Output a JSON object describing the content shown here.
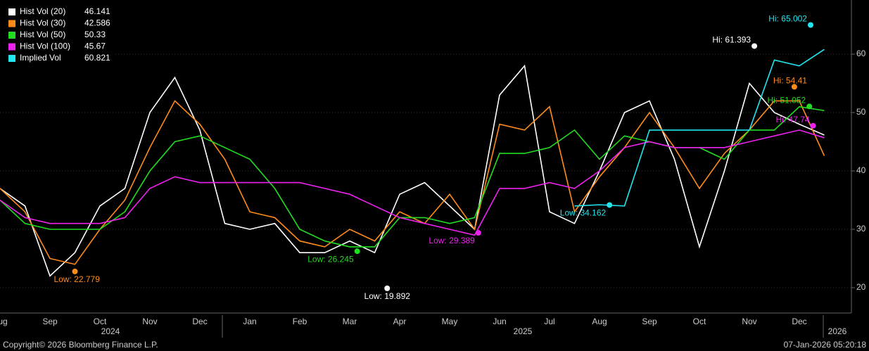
{
  "chart_data": {
    "type": "line",
    "categories": [
      "Aug",
      null,
      "Sep",
      null,
      "Oct",
      null,
      "Nov",
      null,
      "Dec",
      null,
      "Jan",
      null,
      "Feb",
      null,
      "Mar",
      null,
      "Apr",
      null,
      "May",
      null,
      "Jun",
      null,
      "Jul",
      null,
      "Aug",
      null,
      "Sep",
      null,
      "Oct",
      null,
      "Nov",
      null,
      "Dec",
      null
    ],
    "years": [
      "2024",
      "2025",
      "2026"
    ],
    "series": [
      {
        "name": "Hist Vol (20)",
        "color": "#ffffff",
        "values": [
          37,
          34,
          22,
          26,
          34,
          37,
          50,
          56,
          47,
          31,
          30,
          31,
          26,
          26,
          28,
          26,
          36,
          38,
          34,
          30,
          53,
          58,
          33,
          31,
          40,
          50,
          52,
          42,
          27,
          40,
          55,
          50,
          48,
          46.141
        ]
      },
      {
        "name": "Hist Vol (30)",
        "color": "#ff8c1a",
        "values": [
          37,
          33,
          25,
          24,
          30,
          35,
          44,
          52,
          48,
          42,
          33,
          32,
          28,
          27,
          30,
          28,
          33,
          31,
          36,
          30,
          48,
          47,
          51,
          33,
          39,
          44,
          50,
          44,
          37,
          43,
          47,
          52,
          52,
          42.586
        ]
      },
      {
        "name": "Hist Vol (50)",
        "color": "#22dd22",
        "values": [
          35,
          31,
          30,
          30,
          30,
          33,
          40,
          45,
          46,
          44,
          42,
          37,
          30,
          28,
          27,
          27,
          32,
          32,
          31,
          32,
          43,
          43,
          44,
          47,
          42,
          46,
          45,
          44,
          44,
          42,
          47,
          47,
          51,
          50.33
        ]
      },
      {
        "name": "Hist Vol (100)",
        "color": "#ee22ee",
        "values": [
          35,
          32,
          31,
          31,
          31,
          32,
          37,
          39,
          38,
          38,
          38,
          38,
          38,
          37,
          36,
          34,
          32,
          31,
          30,
          29,
          37,
          37,
          38,
          37,
          40,
          44,
          45,
          44,
          44,
          44,
          45,
          46,
          47,
          45.67
        ]
      },
      {
        "name": "Implied Vol",
        "color": "#22e5f0",
        "values": [
          null,
          null,
          null,
          null,
          null,
          null,
          null,
          null,
          null,
          null,
          null,
          null,
          null,
          null,
          null,
          null,
          null,
          null,
          null,
          null,
          null,
          null,
          null,
          34,
          34.2,
          34,
          47,
          47,
          47,
          47,
          47,
          59,
          58,
          60.821
        ]
      }
    ],
    "annotations": [
      {
        "label": "Hi: 65.002",
        "value": 65.002,
        "at": 32.45,
        "color": "#22e5f0"
      },
      {
        "label": "Hi: 61.393",
        "value": 61.393,
        "at": 30.2,
        "color": "#ffffff"
      },
      {
        "label": "Hi: 54.41",
        "value": 54.41,
        "at": 31.8,
        "color": "#ff8c1a"
      },
      {
        "label": "Hi: 51.052",
        "value": 51.052,
        "at": 32.4,
        "color": "#22dd22"
      },
      {
        "label": "Hi: 47.74",
        "value": 47.74,
        "at": 32.55,
        "color": "#ee22ee"
      },
      {
        "label": "Low: 34.162",
        "value": 34.162,
        "at": 24.4,
        "color": "#22e5f0"
      },
      {
        "label": "Low: 29.389",
        "value": 29.389,
        "at": 19.15,
        "color": "#ee22ee"
      },
      {
        "label": "Low: 26.245",
        "value": 26.245,
        "at": 14.3,
        "color": "#22dd22"
      },
      {
        "label": "Low: 19.892",
        "value": 19.892,
        "at": 15.5,
        "color": "#ffffff"
      },
      {
        "label": "Low: 22.779",
        "value": 22.779,
        "at": 3.0,
        "color": "#ff8c1a"
      }
    ],
    "ylim": [
      15.66,
      69.28
    ],
    "yticks": [
      20,
      30,
      40,
      50,
      60
    ],
    "grid": true,
    "footer_left": "Copyright© 2026 Bloomberg Finance L.P.",
    "footer_right": "07-Jan-2026 05:20:18"
  }
}
